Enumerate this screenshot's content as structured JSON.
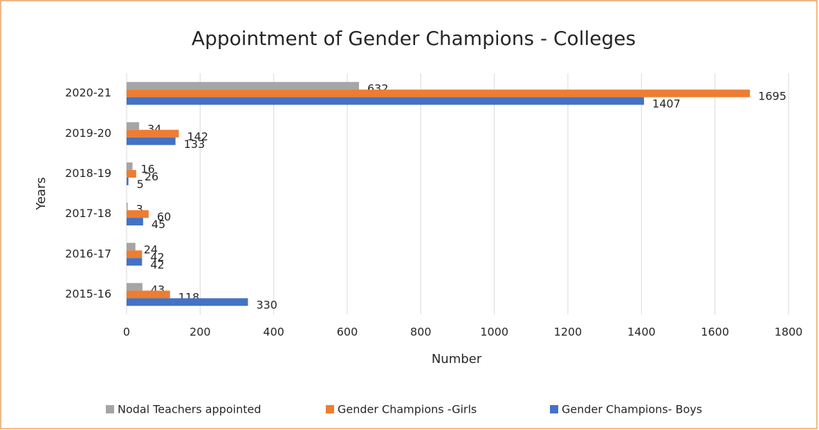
{
  "chart_data": {
    "type": "hbar",
    "title": "Appointment of Gender Champions - Colleges",
    "xlabel": "Number",
    "ylabel": "Years",
    "categories": [
      "2020-21",
      "2019-20",
      "2018-19",
      "2017-18",
      "2016-17",
      "2015-16"
    ],
    "series": [
      {
        "name": "Nodal Teachers appointed",
        "color": "#a5a5a5",
        "values": [
          632,
          34,
          16,
          3,
          24,
          43
        ]
      },
      {
        "name": "Gender Champions -Girls",
        "color": "#ed7d31",
        "values": [
          1695,
          142,
          26,
          60,
          42,
          118
        ]
      },
      {
        "name": "Gender Champions- Boys",
        "color": "#4472c4",
        "values": [
          1407,
          133,
          5,
          45,
          42,
          330
        ]
      }
    ],
    "xlim": [
      0,
      1800
    ],
    "xticks": [
      0,
      200,
      400,
      600,
      800,
      1000,
      1200,
      1400,
      1600,
      1800
    ],
    "grid": true,
    "legend": "bottom"
  }
}
